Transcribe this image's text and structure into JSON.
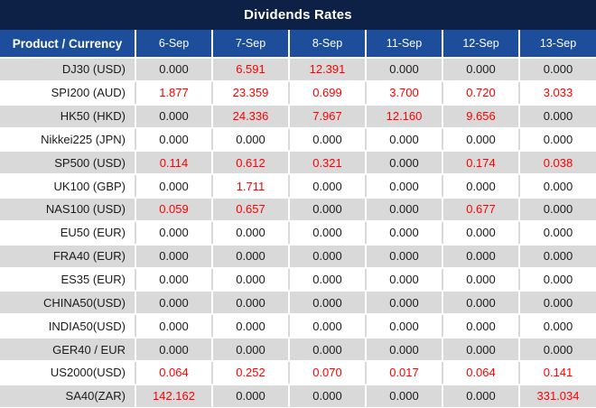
{
  "title": "Dividends Rates",
  "colors": {
    "title_bar": "#0c2145",
    "header": "#1d4e9c",
    "stripe": "#d9d9d9",
    "row_alt": "#ffffff",
    "nonzero_value": "#ff0000",
    "text": "#1b1b1b",
    "header_text": "#ffffff"
  },
  "chart_data": {
    "type": "table",
    "title": "Dividends Rates",
    "zero_value": "0.000",
    "columns": [
      "Product / Currency",
      "6-Sep",
      "7-Sep",
      "8-Sep",
      "11-Sep",
      "12-Sep",
      "13-Sep"
    ],
    "rows": [
      {
        "product": "DJ30 (USD)",
        "values": [
          "0.000",
          "6.591",
          "12.391",
          "0.000",
          "0.000",
          "0.000"
        ]
      },
      {
        "product": "SPI200 (AUD)",
        "values": [
          "1.877",
          "23.359",
          "0.699",
          "3.700",
          "0.720",
          "3.033"
        ]
      },
      {
        "product": "HK50 (HKD)",
        "values": [
          "0.000",
          "24.336",
          "7.967",
          "12.160",
          "9.656",
          "0.000"
        ]
      },
      {
        "product": "Nikkei225 (JPN)",
        "values": [
          "0.000",
          "0.000",
          "0.000",
          "0.000",
          "0.000",
          "0.000"
        ]
      },
      {
        "product": "SP500 (USD)",
        "values": [
          "0.114",
          "0.612",
          "0.321",
          "0.000",
          "0.174",
          "0.038"
        ]
      },
      {
        "product": "UK100 (GBP)",
        "values": [
          "0.000",
          "1.711",
          "0.000",
          "0.000",
          "0.000",
          "0.000"
        ]
      },
      {
        "product": "NAS100 (USD)",
        "values": [
          "0.059",
          "0.657",
          "0.000",
          "0.000",
          "0.677",
          "0.000"
        ]
      },
      {
        "product": "EU50 (EUR)",
        "values": [
          "0.000",
          "0.000",
          "0.000",
          "0.000",
          "0.000",
          "0.000"
        ]
      },
      {
        "product": "FRA40 (EUR)",
        "values": [
          "0.000",
          "0.000",
          "0.000",
          "0.000",
          "0.000",
          "0.000"
        ]
      },
      {
        "product": "ES35 (EUR)",
        "values": [
          "0.000",
          "0.000",
          "0.000",
          "0.000",
          "0.000",
          "0.000"
        ]
      },
      {
        "product": "CHINA50(USD)",
        "values": [
          "0.000",
          "0.000",
          "0.000",
          "0.000",
          "0.000",
          "0.000"
        ]
      },
      {
        "product": "INDIA50(USD)",
        "values": [
          "0.000",
          "0.000",
          "0.000",
          "0.000",
          "0.000",
          "0.000"
        ]
      },
      {
        "product": "GER40 / EUR",
        "values": [
          "0.000",
          "0.000",
          "0.000",
          "0.000",
          "0.000",
          "0.000"
        ]
      },
      {
        "product": "US2000(USD)",
        "values": [
          "0.064",
          "0.252",
          "0.070",
          "0.017",
          "0.064",
          "0.141"
        ]
      },
      {
        "product": "SA40(ZAR)",
        "values": [
          "142.162",
          "0.000",
          "0.000",
          "0.000",
          "0.000",
          "331.034"
        ]
      }
    ]
  }
}
